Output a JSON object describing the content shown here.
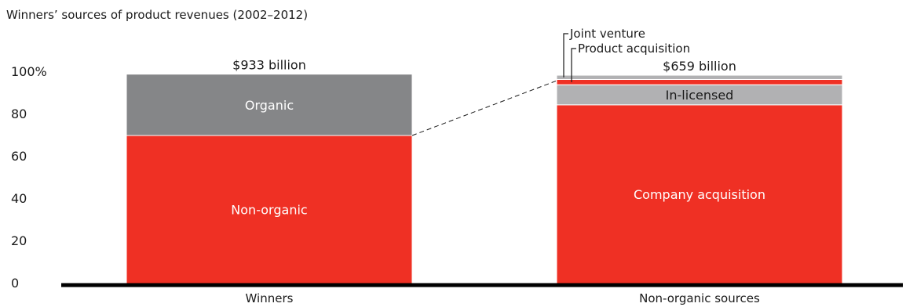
{
  "chart_data": {
    "type": "bar",
    "stacked": true,
    "title": "Winners’ sources of product revenues (2002–2012)",
    "xlabel": "",
    "ylabel": "",
    "ylim": [
      0,
      100
    ],
    "yticks": [
      0,
      20,
      40,
      60,
      80,
      100
    ],
    "ytick_labels": [
      "0",
      "20",
      "40",
      "60",
      "80",
      "100%"
    ],
    "categories": [
      "Winners",
      "Non-organic sources"
    ],
    "totals": [
      "$933 billion",
      "$659 billion"
    ],
    "bars": [
      {
        "category": "Winners",
        "segments": [
          {
            "name": "Non-organic",
            "value": 70,
            "color": "#ef3024",
            "label_position": "inside"
          },
          {
            "name": "Organic",
            "value": 29,
            "color": "#858688",
            "label_position": "inside"
          }
        ]
      },
      {
        "category": "Non-organic sources",
        "segments": [
          {
            "name": "Company acquisition",
            "value": 84.5,
            "color": "#ef3024",
            "label_position": "inside"
          },
          {
            "name": "In-licensed",
            "value": 9.5,
            "color": "#b1b1b3",
            "label_position": "inside"
          },
          {
            "name": "Product acquisition",
            "value": 2.5,
            "color": "#ef3024",
            "label_position": "callout"
          },
          {
            "name": "Joint venture",
            "value": 2,
            "color": "#b1b1b3",
            "label_position": "callout"
          }
        ]
      }
    ],
    "connector": "dashed line from top of Winners' Non-organic segment to Non-organic sources bar",
    "grid": false,
    "legend": "none"
  },
  "colors": {
    "accent_red": "#ef3024",
    "dark_gray": "#858688",
    "light_gray": "#b1b1b3",
    "axis": "#000000",
    "text": "#1a1a1a"
  }
}
